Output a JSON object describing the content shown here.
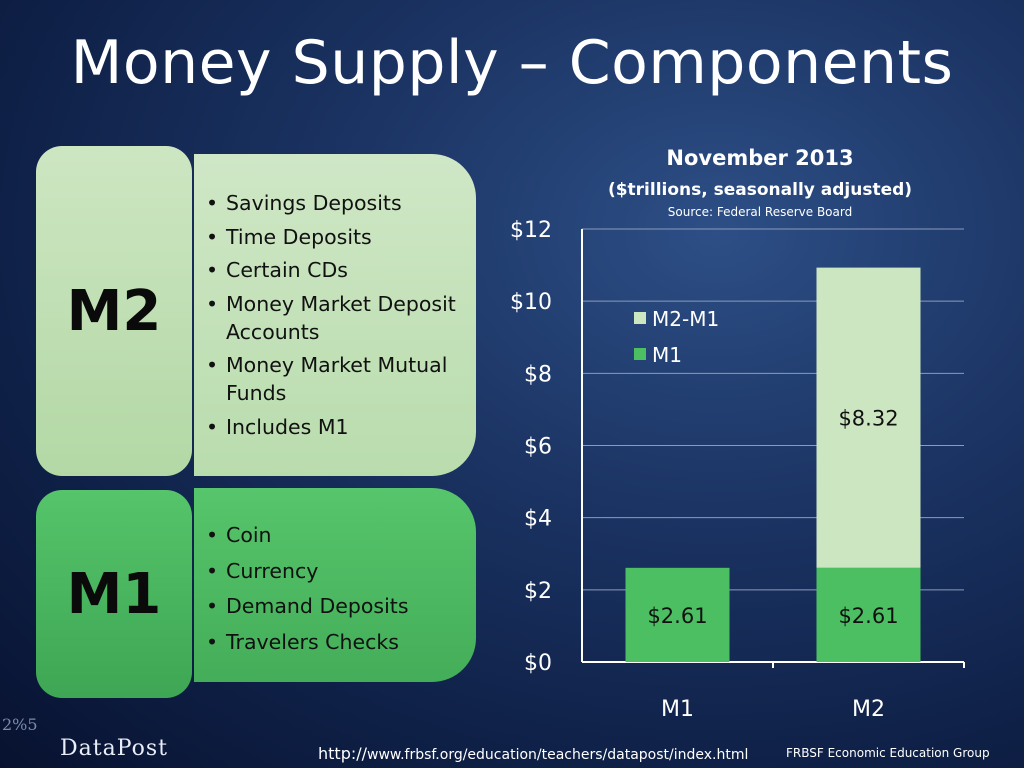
{
  "title": "Money Supply – Components",
  "m2": {
    "label": "M2",
    "items": [
      "Savings Deposits",
      "Time Deposits",
      "Certain CDs",
      "Money Market Deposit Accounts",
      "Money Market Mutual Funds",
      "Includes M1"
    ]
  },
  "m1": {
    "label": "M1",
    "items": [
      "Coin",
      "Currency",
      "Demand Deposits",
      "Travelers Checks"
    ]
  },
  "chart_data": {
    "type": "bar",
    "stacked": true,
    "title": "November 2013",
    "subtitle": "($trillions, seasonally adjusted)",
    "source": "Source: Federal Reserve Board",
    "categories": [
      "M1",
      "M2"
    ],
    "series": [
      {
        "name": "M1",
        "values": [
          2.61,
          2.61
        ],
        "color": "#4cbf62",
        "labels": [
          "$2.61",
          "$2.61"
        ]
      },
      {
        "name": "M2-M1",
        "values": [
          0,
          8.32
        ],
        "color": "#cde6c2",
        "labels": [
          "",
          "$8.32"
        ]
      }
    ],
    "ylim": [
      0,
      12
    ],
    "yticks": [
      "$0",
      "$2",
      "$4",
      "$6",
      "$8",
      "$10",
      "$12"
    ],
    "grid": true,
    "legend_order": [
      "M2-M1",
      "M1"
    ]
  },
  "footer": {
    "url_prefix": "http://",
    "url_rest": "www.frbsf.org/education/teachers/datapost/index.html",
    "org": "FRBSF Economic Education Group",
    "logo_text": "DataPost",
    "logo_mark": "2%5"
  },
  "colors": {
    "m2": "#cde6c2",
    "m1": "#4cbf62"
  }
}
